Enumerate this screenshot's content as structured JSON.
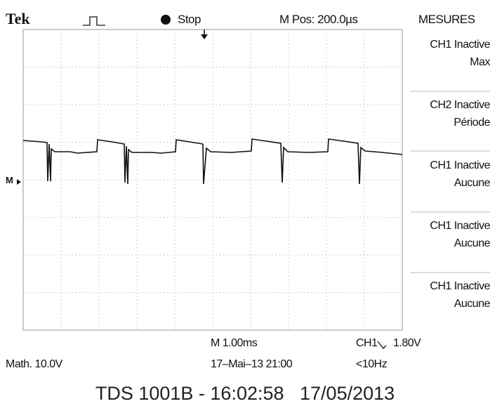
{
  "header": {
    "brand": "Tek",
    "status": "Stop",
    "position": "M Pos: 200.0µs"
  },
  "marker": "M",
  "menu": {
    "title": "MESURES",
    "items": [
      {
        "source": "CH1 Inactive",
        "measure": "Max"
      },
      {
        "source": "CH2 Inactive",
        "measure": "Période"
      },
      {
        "source": "CH1 Inactive",
        "measure": "Aucune"
      },
      {
        "source": "CH1 Inactive",
        "measure": "Aucune"
      },
      {
        "source": "CH1 Inactive",
        "measure": "Aucune"
      }
    ]
  },
  "footer": {
    "timebase": "M 1.00ms",
    "trigger_source": "CH1",
    "trigger_level": "1.80V",
    "math": "Math. 10.0V",
    "date": "17–Mai–13 21:00",
    "frequency": "<10Hz"
  },
  "caption": "TDS 1001B - 16:02:58   17/05/2013"
}
